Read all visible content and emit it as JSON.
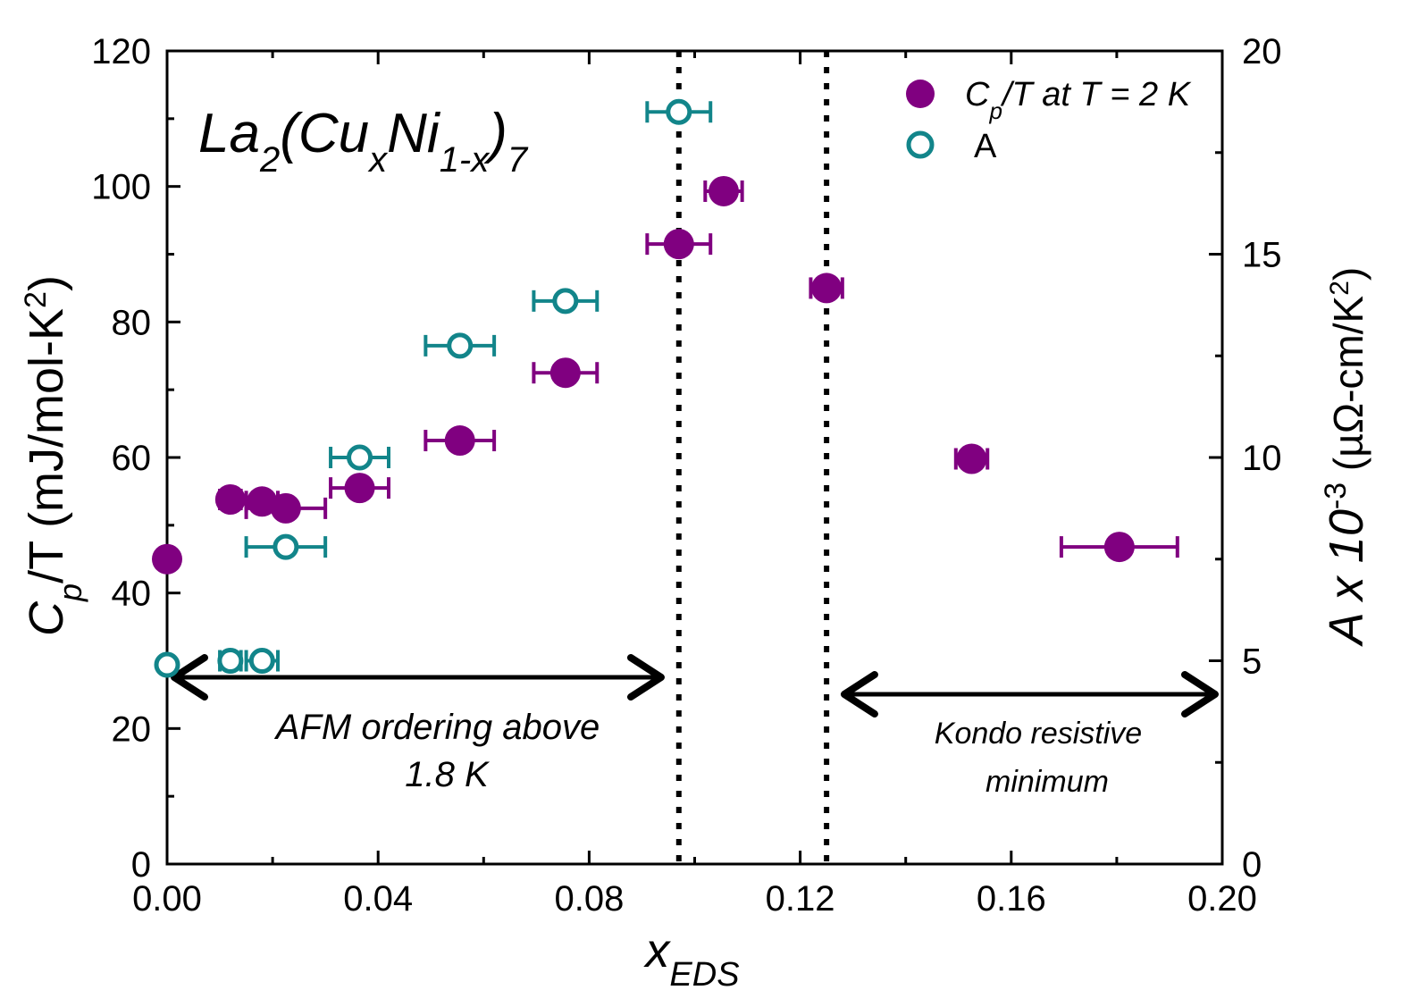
{
  "chart_data": {
    "type": "scatter",
    "title": "",
    "formula": {
      "main": "La",
      "sub1": "2",
      "open": "(Cu",
      "sub2": "x",
      "mid": "Ni",
      "sub3": "1-x",
      "close": ")",
      "sub4": "7"
    },
    "xlabel": {
      "main": "x",
      "sub": "EDS"
    },
    "ylabel_left": {
      "c": "C",
      "p": "p",
      "rest": "/T (mJ/mol-K",
      "sup": "2",
      "end": ")"
    },
    "ylabel_right": {
      "a": "A x 10",
      "sup": "-3",
      "rest": " (µΩ-cm/K",
      "sup2": "2",
      "end": ")"
    },
    "xlim": [
      0.0,
      0.2
    ],
    "ylim_left": [
      0,
      120
    ],
    "ylim_right": [
      0,
      20
    ],
    "x_ticks": [
      {
        "v": 0.0,
        "label": "0.00"
      },
      {
        "v": 0.04,
        "label": "0.04"
      },
      {
        "v": 0.08,
        "label": "0.08"
      },
      {
        "v": 0.12,
        "label": "0.12"
      },
      {
        "v": 0.16,
        "label": "0.16"
      },
      {
        "v": 0.2,
        "label": "0.20"
      }
    ],
    "y_left_ticks": [
      {
        "v": 0,
        "label": "0"
      },
      {
        "v": 20,
        "label": "20"
      },
      {
        "v": 40,
        "label": "40"
      },
      {
        "v": 60,
        "label": "60"
      },
      {
        "v": 80,
        "label": "80"
      },
      {
        "v": 100,
        "label": "100"
      },
      {
        "v": 120,
        "label": "120"
      }
    ],
    "y_right_ticks": [
      {
        "v": 0,
        "label": "0"
      },
      {
        "v": 5,
        "label": "5"
      },
      {
        "v": 10,
        "label": "10"
      },
      {
        "v": 15,
        "label": "15"
      },
      {
        "v": 20,
        "label": "20"
      }
    ],
    "series": [
      {
        "name": "Cp/T at T = 2 K",
        "legend": {
          "c": "C",
          "p": "p",
          "rest": "/T at T = 2 K"
        },
        "axis": "left",
        "marker": "filled-circle",
        "color": "#800080",
        "points": [
          {
            "x": 0.0,
            "y": 45.0,
            "xerr": 0.0
          },
          {
            "x": 0.012,
            "y": 53.8,
            "xerr": 0.002
          },
          {
            "x": 0.018,
            "y": 53.5,
            "xerr": 0.003
          },
          {
            "x": 0.0225,
            "y": 52.5,
            "xerr": 0.0075
          },
          {
            "x": 0.0365,
            "y": 55.5,
            "xerr": 0.0055
          },
          {
            "x": 0.0555,
            "y": 62.5,
            "xerr": 0.0065
          },
          {
            "x": 0.0755,
            "y": 72.5,
            "xerr": 0.006
          },
          {
            "x": 0.097,
            "y": 91.5,
            "xerr": 0.006
          },
          {
            "x": 0.1055,
            "y": 99.3,
            "xerr": 0.0035
          },
          {
            "x": 0.125,
            "y": 85.0,
            "xerr": 0.003
          },
          {
            "x": 0.1525,
            "y": 59.8,
            "xerr": 0.003
          },
          {
            "x": 0.1805,
            "y": 46.8,
            "xerr": 0.011
          }
        ]
      },
      {
        "name": "A",
        "legend": {
          "c": "A",
          "p": "",
          "rest": ""
        },
        "axis": "right",
        "marker": "open-circle",
        "color": "#12858a",
        "points": [
          {
            "x": 0.0,
            "y": 4.9,
            "xerr": 0.0
          },
          {
            "x": 0.012,
            "y": 5.0,
            "xerr": 0.002
          },
          {
            "x": 0.018,
            "y": 5.0,
            "xerr": 0.003
          },
          {
            "x": 0.0225,
            "y": 7.8,
            "xerr": 0.0075
          },
          {
            "x": 0.0365,
            "y": 10.0,
            "xerr": 0.0055
          },
          {
            "x": 0.0555,
            "y": 12.75,
            "xerr": 0.0065
          },
          {
            "x": 0.0755,
            "y": 13.85,
            "xerr": 0.006
          },
          {
            "x": 0.097,
            "y": 18.5,
            "xerr": 0.006
          }
        ]
      }
    ],
    "vlines": [
      {
        "x": 0.097,
        "style": "dotted"
      },
      {
        "x": 0.125,
        "style": "dotted"
      }
    ],
    "annotations": [
      {
        "lines": [
          "AFM ordering above",
          "1.8 K"
        ],
        "arrow_from": 0.0,
        "arrow_to": 0.095
      },
      {
        "lines": [
          "Kondo resistive",
          "minimum"
        ],
        "arrow_from": 0.127,
        "arrow_to": 0.2
      }
    ],
    "legend_position": "top-right",
    "grid": false
  }
}
